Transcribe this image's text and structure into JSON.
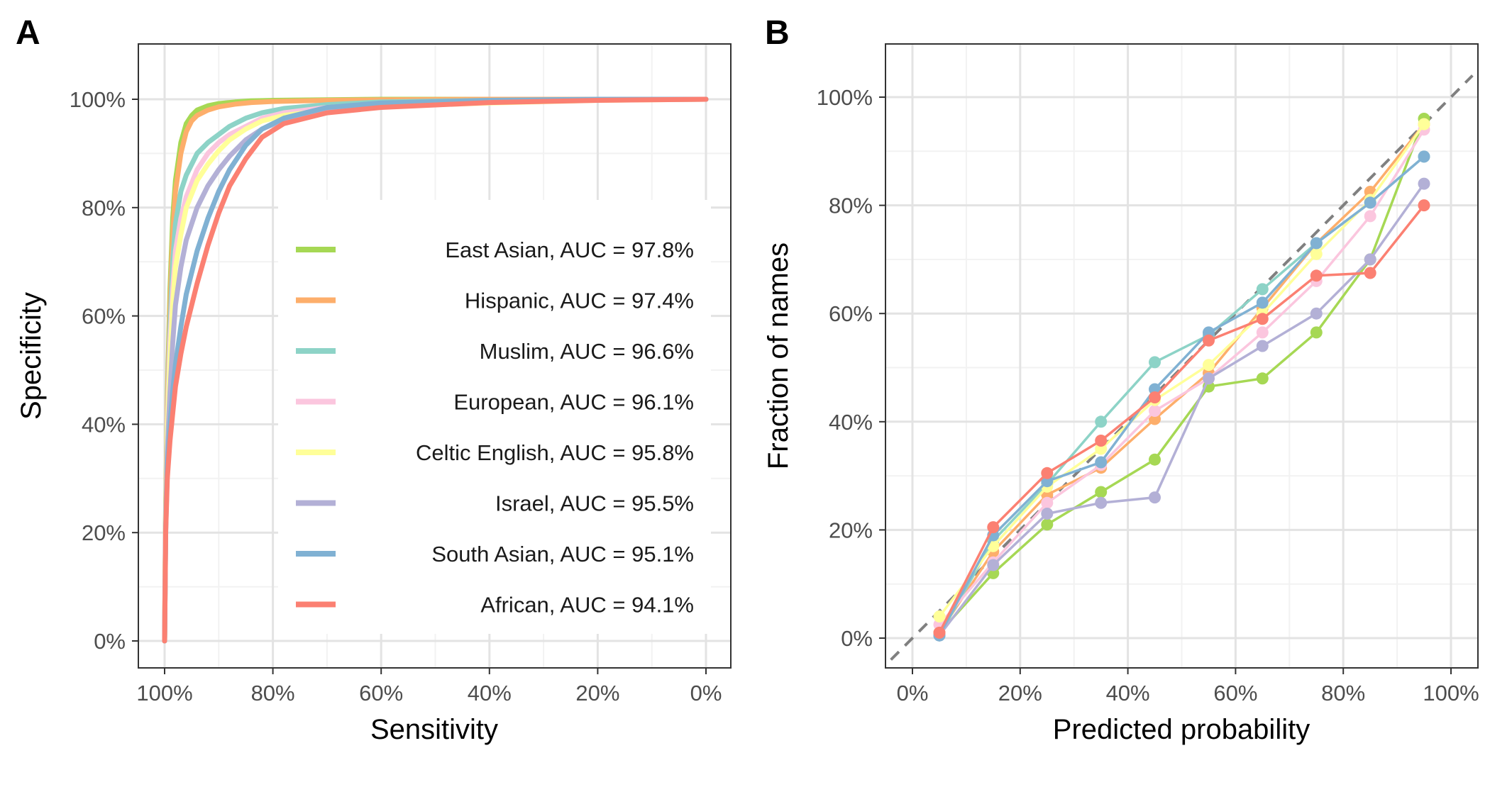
{
  "chart_data": [
    {
      "panel": "A",
      "type": "line",
      "xlabel": "Sensitivity",
      "ylabel": "Specificity",
      "x_reversed": true,
      "xlim": [
        0,
        100
      ],
      "ylim": [
        0,
        100
      ],
      "x_ticks": [
        100,
        80,
        60,
        40,
        20,
        0
      ],
      "x_tick_labels": [
        "100%",
        "80%",
        "60%",
        "40%",
        "20%",
        "0%"
      ],
      "y_ticks": [
        0,
        20,
        40,
        60,
        80,
        100
      ],
      "y_tick_labels": [
        "0%",
        "20%",
        "40%",
        "60%",
        "80%",
        "100%"
      ],
      "grid": true,
      "legend_position": "bottom-right",
      "series": [
        {
          "name": "East Asian, AUC = 97.8%",
          "color": "#a6d854",
          "x": [
            100,
            99.8,
            99.5,
            99,
            98.5,
            98,
            97,
            96,
            95,
            94,
            92,
            90,
            87,
            84,
            80,
            70,
            60,
            40,
            20,
            0
          ],
          "y": [
            0,
            25,
            45,
            65,
            78,
            85,
            92,
            95.5,
            97,
            98,
            98.8,
            99.2,
            99.5,
            99.7,
            99.8,
            99.9,
            100,
            100,
            100,
            100
          ]
        },
        {
          "name": "Hispanic, AUC = 97.4%",
          "color": "#fdae6b",
          "x": [
            100,
            99.8,
            99.5,
            99,
            98.5,
            98,
            97,
            96,
            95,
            94,
            92,
            90,
            87,
            84,
            80,
            70,
            60,
            40,
            20,
            0
          ],
          "y": [
            0,
            24,
            43,
            62,
            75,
            83,
            90,
            94,
            96,
            97,
            98,
            98.6,
            99.1,
            99.4,
            99.6,
            99.8,
            99.9,
            100,
            100,
            100
          ]
        },
        {
          "name": "Muslim, AUC = 96.6%",
          "color": "#8dd3c7",
          "x": [
            100,
            99.8,
            99.5,
            99,
            98.5,
            98,
            97,
            96,
            94,
            92,
            90,
            88,
            85,
            82,
            78,
            70,
            60,
            40,
            20,
            0
          ],
          "y": [
            0,
            23,
            40,
            58,
            70,
            77,
            83,
            86,
            90,
            92,
            93.5,
            95,
            96.5,
            97.5,
            98.3,
            99,
            99.5,
            99.8,
            99.9,
            100
          ]
        },
        {
          "name": "European, AUC = 96.1%",
          "color": "#fbc6de",
          "x": [
            100,
            99.8,
            99.5,
            99,
            98.5,
            98,
            97,
            96,
            94,
            92,
            90,
            88,
            85,
            82,
            78,
            70,
            60,
            40,
            20,
            0
          ],
          "y": [
            0,
            22,
            40,
            55,
            65,
            72,
            78,
            82,
            87,
            90,
            92,
            93.5,
            95,
            96.5,
            97.5,
            98.5,
            99.2,
            99.7,
            99.9,
            100
          ]
        },
        {
          "name": "Celtic English, AUC = 95.8%",
          "color": "#ffff99",
          "x": [
            100,
            99.8,
            99.5,
            99,
            98.5,
            98,
            97,
            96,
            94,
            92,
            90,
            88,
            85,
            82,
            78,
            70,
            60,
            40,
            20,
            0
          ],
          "y": [
            0,
            22,
            38,
            52,
            62,
            69,
            75,
            80,
            85,
            88,
            90.5,
            92.5,
            94.5,
            96,
            97,
            98,
            98.7,
            99.3,
            99.8,
            100
          ]
        },
        {
          "name": "Israel, AUC = 95.5%",
          "color": "#b3b0d6",
          "x": [
            100,
            99.8,
            99.5,
            99,
            98.5,
            98,
            97,
            96,
            94,
            92,
            90,
            88,
            85,
            82,
            78,
            70,
            60,
            40,
            20,
            0
          ],
          "y": [
            0,
            21,
            35,
            46,
            55,
            62,
            69,
            74,
            80,
            84,
            87,
            89.5,
            92.5,
            94.5,
            96.2,
            98,
            99,
            99.7,
            99.9,
            100
          ]
        },
        {
          "name": "South Asian, AUC = 95.1%",
          "color": "#80b1d3",
          "x": [
            100,
            99.8,
            99.5,
            99,
            98.5,
            98,
            97,
            96,
            94,
            92,
            90,
            88,
            85,
            82,
            78,
            70,
            60,
            40,
            20,
            0
          ],
          "y": [
            0,
            20,
            32,
            40,
            46,
            51,
            58,
            64,
            72,
            78,
            83,
            87,
            91.5,
            94.5,
            96.5,
            98.5,
            99.3,
            99.8,
            100,
            100
          ]
        },
        {
          "name": "African, AUC = 94.1%",
          "color": "#fb8072",
          "x": [
            100,
            99.8,
            99.5,
            99,
            98.5,
            98,
            97,
            96,
            94,
            92,
            90,
            88,
            85,
            82,
            78,
            70,
            60,
            40,
            20,
            0
          ],
          "y": [
            0,
            20,
            30,
            37,
            42,
            47,
            53,
            58,
            66,
            73,
            79,
            84,
            89,
            93,
            95.5,
            97.5,
            98.5,
            99.4,
            99.8,
            100
          ]
        }
      ]
    },
    {
      "panel": "B",
      "type": "line",
      "xlabel": "Predicted probability",
      "ylabel": "Fraction of names",
      "xlim": [
        -4,
        104
      ],
      "ylim": [
        -4,
        104
      ],
      "x_ticks": [
        0,
        20,
        40,
        60,
        80,
        100
      ],
      "x_tick_labels": [
        "0%",
        "20%",
        "40%",
        "60%",
        "80%",
        "100%"
      ],
      "y_ticks": [
        0,
        20,
        40,
        60,
        80,
        100
      ],
      "y_tick_labels": [
        "0%",
        "20%",
        "40%",
        "60%",
        "80%",
        "100%"
      ],
      "grid": true,
      "reference_line": "y = x (dashed)",
      "x": [
        5,
        15,
        25,
        35,
        45,
        55,
        65,
        75,
        85,
        95
      ],
      "series": [
        {
          "name": "East Asian",
          "color": "#a6d854",
          "y": [
            1,
            12,
            21,
            27,
            33,
            46.5,
            48,
            56.5,
            70,
            96
          ]
        },
        {
          "name": "Hispanic",
          "color": "#fdae6b",
          "y": [
            1,
            16,
            26.5,
            31.5,
            40.5,
            49,
            61,
            73,
            82.5,
            95
          ]
        },
        {
          "name": "Muslim",
          "color": "#8dd3c7",
          "y": [
            0.5,
            18,
            28.5,
            40,
            51,
            56,
            64.5,
            73,
            80.5,
            89
          ]
        },
        {
          "name": "European",
          "color": "#fbc6de",
          "y": [
            2.5,
            14,
            25,
            32,
            42,
            48,
            56.5,
            66,
            78,
            94
          ]
        },
        {
          "name": "Celtic English",
          "color": "#ffff99",
          "y": [
            4,
            17,
            28,
            35,
            44,
            50.5,
            60,
            71,
            81,
            95
          ]
        },
        {
          "name": "Israel",
          "color": "#b3b0d6",
          "y": [
            0.5,
            13.5,
            23,
            25,
            26,
            48,
            54,
            60,
            70,
            84
          ]
        },
        {
          "name": "South Asian",
          "color": "#80b1d3",
          "y": [
            0.5,
            19,
            29,
            32.5,
            46,
            56.5,
            62,
            73,
            80.5,
            89
          ]
        },
        {
          "name": "African",
          "color": "#fb8072",
          "y": [
            1,
            20.5,
            30.5,
            36.5,
            44.5,
            55,
            59,
            67,
            67.5,
            80
          ]
        }
      ]
    }
  ]
}
